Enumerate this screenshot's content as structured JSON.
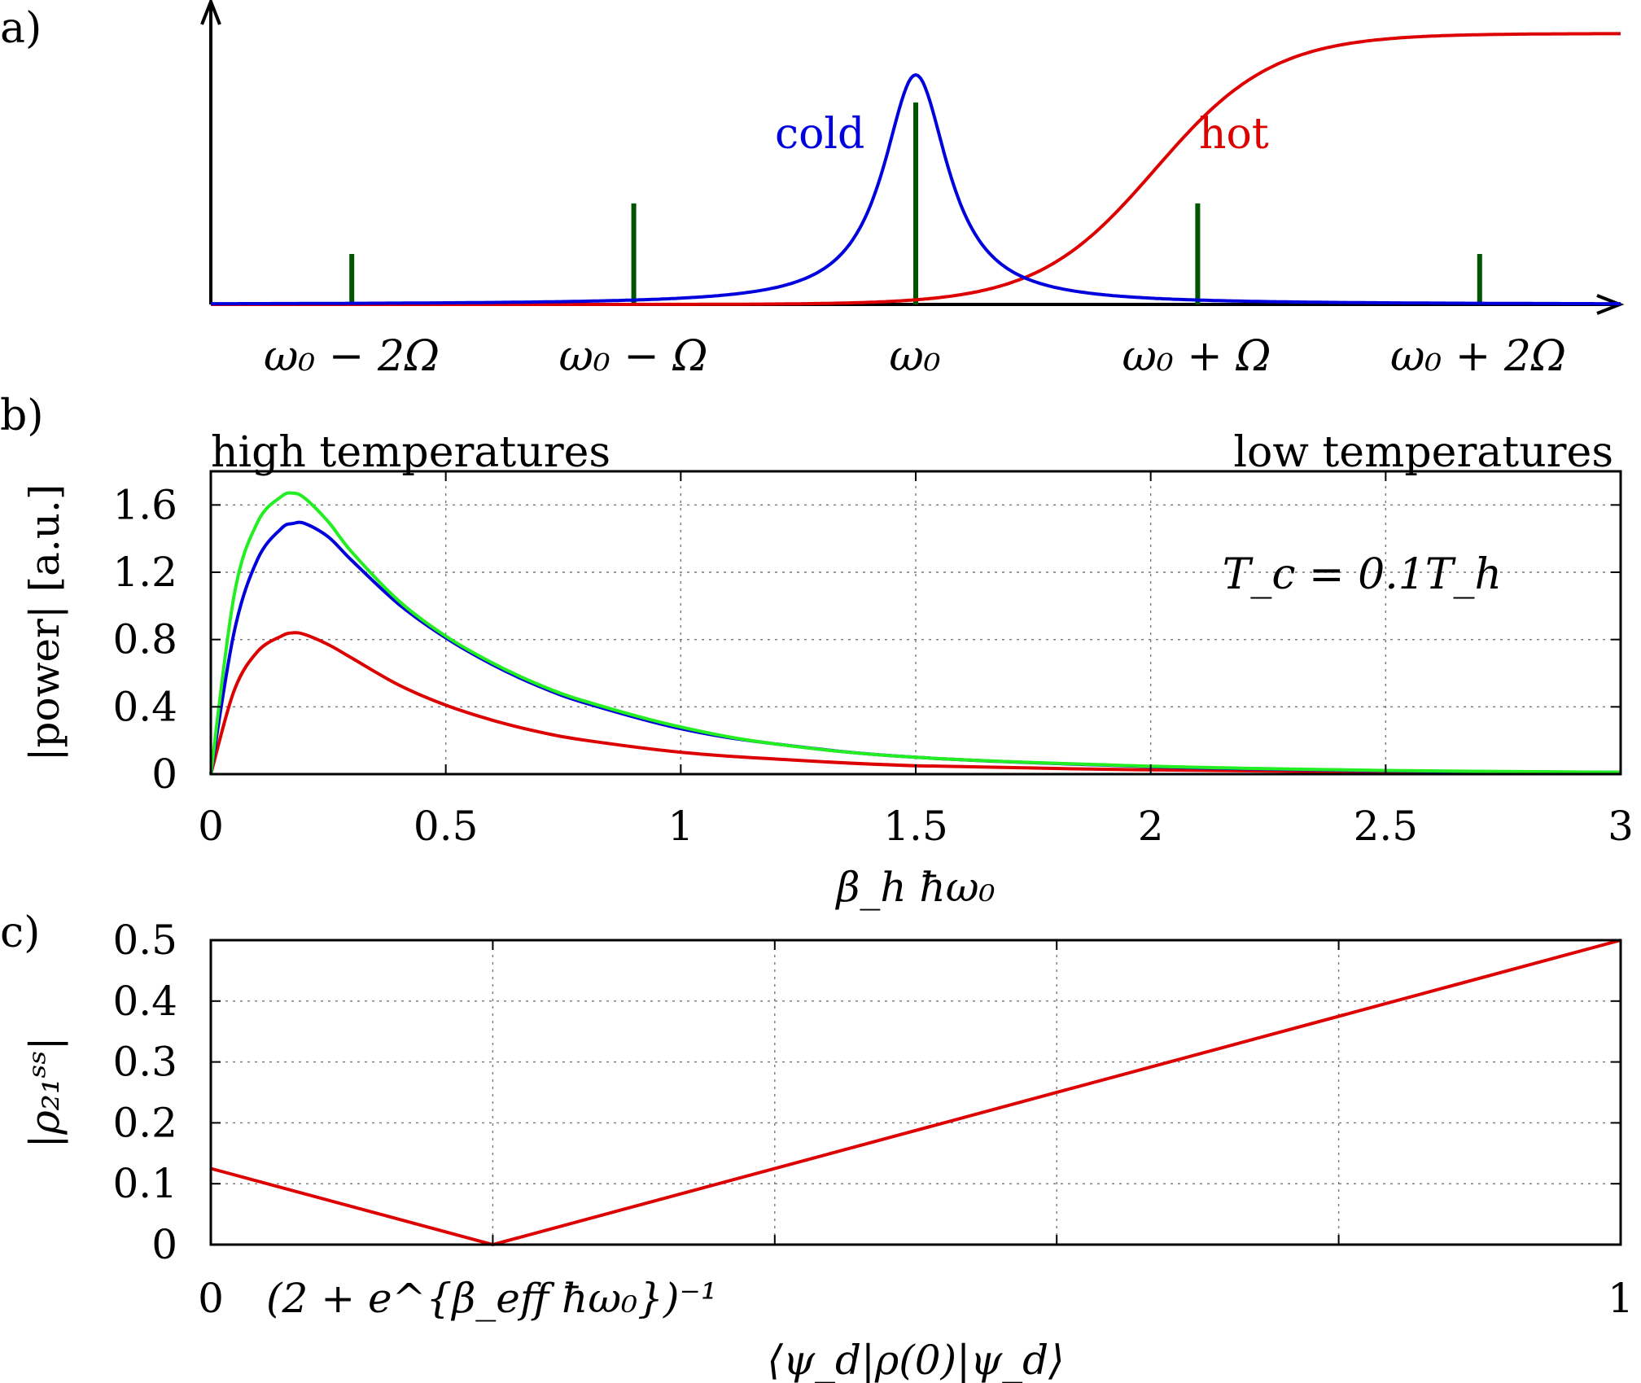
{
  "panels": {
    "a": "a)",
    "b": "b)",
    "c": "c)"
  },
  "colors": {
    "cold": "#0000dd",
    "hot": "#dd0000",
    "green_curve": "#22ee22",
    "sidebands": "#005500",
    "axis": "#000000"
  },
  "chart_data": [
    {
      "type": "line",
      "panel": "a)",
      "annotations": {
        "cold": "cold",
        "hot": "hot"
      },
      "xlabels": [
        "ω₀ − 2Ω",
        "ω₀ − Ω",
        "ω₀",
        "ω₀ + Ω",
        "ω₀ + 2Ω"
      ],
      "x_range": [
        -2.5,
        2.5
      ],
      "y_range": [
        0,
        1.05
      ],
      "sidebands": [
        {
          "x": -2,
          "height": 0.22
        },
        {
          "x": -1,
          "height": 0.44
        },
        {
          "x": 0,
          "height": 0.88
        },
        {
          "x": 1,
          "height": 0.44
        },
        {
          "x": 2,
          "height": 0.22
        }
      ],
      "series": [
        {
          "name": "cold",
          "shape": "lorentzian",
          "center": 0,
          "peak": 1.0,
          "half_width": 0.14
        },
        {
          "name": "hot",
          "shape": "sigmoid",
          "center": 0.85,
          "height": 1.18,
          "steepness": 0.21
        }
      ]
    },
    {
      "type": "line",
      "panel": "b)",
      "xlabel": "β_h ħω₀",
      "ylabel": "|power| [a.u.]",
      "left_note": "high temperatures",
      "right_note": "low temperatures",
      "annotation": "T_c = 0.1T_h",
      "xlim": [
        0,
        3
      ],
      "ylim": [
        0,
        1.8
      ],
      "xticks": [
        "0",
        "0.5",
        "1",
        "1.5",
        "2",
        "2.5",
        "3"
      ],
      "yticks": [
        "0",
        "0.4",
        "0.8",
        "1.2",
        "1.6"
      ],
      "grid": true,
      "x": [
        0,
        0.05,
        0.1,
        0.15,
        0.175,
        0.2,
        0.25,
        0.3,
        0.4,
        0.5,
        0.6,
        0.7,
        0.8,
        1.0,
        1.2,
        1.5,
        2.0,
        2.5,
        3.0
      ],
      "series": [
        {
          "color": "#dd0000",
          "values": [
            0,
            0.5,
            0.73,
            0.82,
            0.84,
            0.83,
            0.77,
            0.69,
            0.53,
            0.41,
            0.32,
            0.25,
            0.2,
            0.13,
            0.09,
            0.05,
            0.025,
            0.012,
            0.006
          ]
        },
        {
          "color": "#0000dd",
          "values": [
            0,
            0.85,
            1.28,
            1.46,
            1.49,
            1.49,
            1.41,
            1.27,
            1.01,
            0.81,
            0.65,
            0.52,
            0.42,
            0.27,
            0.18,
            0.1,
            0.045,
            0.02,
            0.01
          ]
        },
        {
          "color": "#22ee22",
          "values": [
            0,
            1.07,
            1.5,
            1.65,
            1.67,
            1.64,
            1.5,
            1.32,
            1.03,
            0.82,
            0.66,
            0.53,
            0.43,
            0.28,
            0.18,
            0.1,
            0.047,
            0.022,
            0.011
          ]
        }
      ]
    },
    {
      "type": "line",
      "panel": "c)",
      "xlabel": "⟨ψ_d|ρ(0)|ψ_d⟩",
      "ylabel": "|ρ₂₁ˢˢ|",
      "xlim": [
        0,
        1
      ],
      "ylim": [
        0,
        0.5
      ],
      "xtick_labels": {
        "left": "0",
        "mid": "(2 + e^{β_eff ħω₀})⁻¹",
        "right": "1"
      },
      "yticks": [
        "0",
        "0.1",
        "0.2",
        "0.3",
        "0.4",
        "0.5"
      ],
      "grid_x": [
        0.2,
        0.4,
        0.6,
        0.8
      ],
      "grid": true,
      "series": [
        {
          "color": "#dd0000",
          "x": [
            0,
            0.2,
            1.0
          ],
          "values": [
            0.125,
            0,
            0.5
          ]
        }
      ]
    }
  ]
}
